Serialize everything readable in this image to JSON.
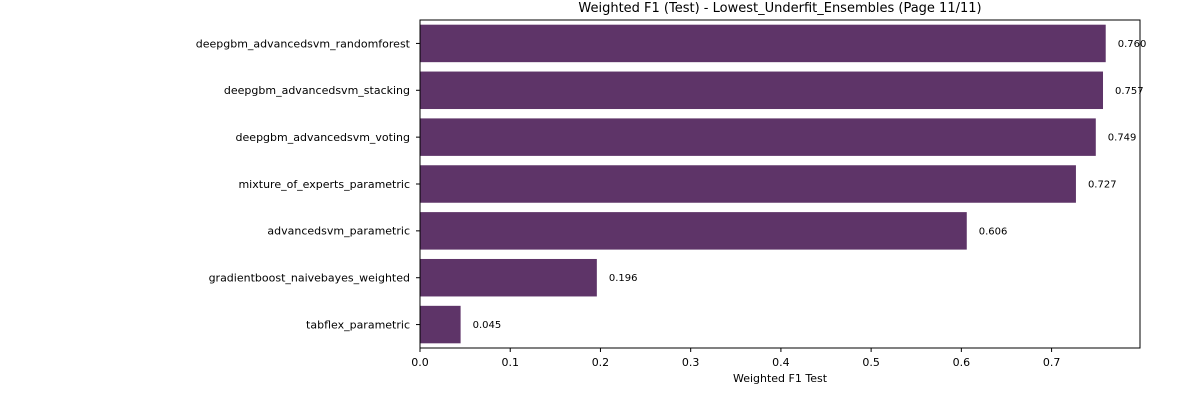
{
  "chart_data": {
    "type": "bar",
    "orientation": "horizontal",
    "title": "Weighted F1 (Test) - Lowest_Underfit_Ensembles (Page 11/11)",
    "xlabel": "Weighted F1 Test",
    "ylabel": "",
    "xlim": [
      0,
      0.798
    ],
    "xticks": [
      0.0,
      0.1,
      0.2,
      0.3,
      0.4,
      0.5,
      0.6,
      0.7
    ],
    "xtick_labels": [
      "0.0",
      "0.1",
      "0.2",
      "0.3",
      "0.4",
      "0.5",
      "0.6",
      "0.7"
    ],
    "grid": false,
    "bar_color": "#5e3468",
    "categories": [
      "deepgbm_advancedsvm_randomforest",
      "deepgbm_advancedsvm_stacking",
      "deepgbm_advancedsvm_voting",
      "mixture_of_experts_parametric",
      "advancedsvm_parametric",
      "gradientboost_naivebayes_weighted",
      "tabflex_parametric"
    ],
    "values": [
      0.76,
      0.757,
      0.749,
      0.727,
      0.606,
      0.196,
      0.045
    ],
    "value_labels": [
      "0.760",
      "0.757",
      "0.749",
      "0.727",
      "0.606",
      "0.196",
      "0.045"
    ]
  }
}
